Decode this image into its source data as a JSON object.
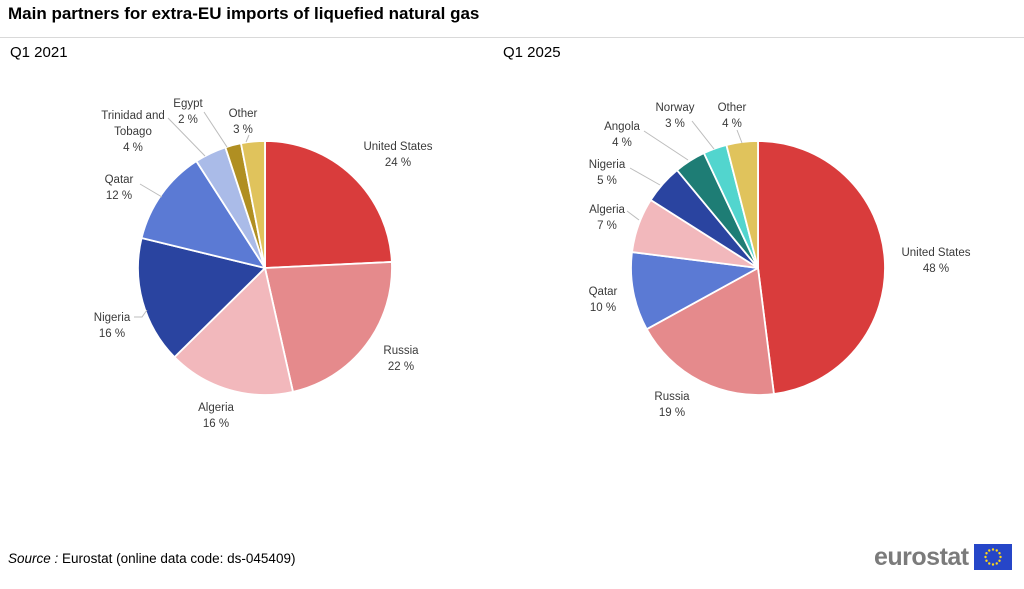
{
  "title": "Main partners for extra-EU imports of liquefied natural gas",
  "chart_data": [
    {
      "type": "pie",
      "title": "Q1 2021",
      "unit": "%",
      "start_angle_deg": 0,
      "direction": "clockwise",
      "labels": [
        "United States",
        "Russia",
        "Algeria",
        "Nigeria",
        "Qatar",
        "Trinidad and Tobago",
        "Egypt",
        "Other"
      ],
      "values": [
        24,
        22,
        16,
        16,
        12,
        4,
        2,
        3
      ],
      "colors": [
        "#D93C3C",
        "#E58A8C",
        "#F2B8BC",
        "#2A44A0",
        "#5B7AD4",
        "#AABBE8",
        "#B08F22",
        "#E0C35C"
      ]
    },
    {
      "type": "pie",
      "title": "Q1 2025",
      "unit": "%",
      "start_angle_deg": 0,
      "direction": "clockwise",
      "labels": [
        "United States",
        "Russia",
        "Qatar",
        "Algeria",
        "Nigeria",
        "Angola",
        "Norway",
        "Other"
      ],
      "values": [
        48,
        19,
        10,
        7,
        5,
        4,
        3,
        4
      ],
      "colors": [
        "#D93C3C",
        "#E58A8C",
        "#5B7AD4",
        "#F2B8BC",
        "#2A44A0",
        "#1E7D75",
        "#52D5CE",
        "#E0C35C"
      ]
    }
  ],
  "footer": {
    "source_label": "Source :",
    "source_text": "Eurostat (online data code: ds-045409)"
  },
  "logo": {
    "text": "eurostat",
    "flag_blue": "#2646C8",
    "star_yellow": "#FFD617"
  },
  "style_colors": {
    "label_text": "#3a3a3a",
    "leader_line": "#bcbcbc",
    "slice_outline": "#ffffff"
  }
}
